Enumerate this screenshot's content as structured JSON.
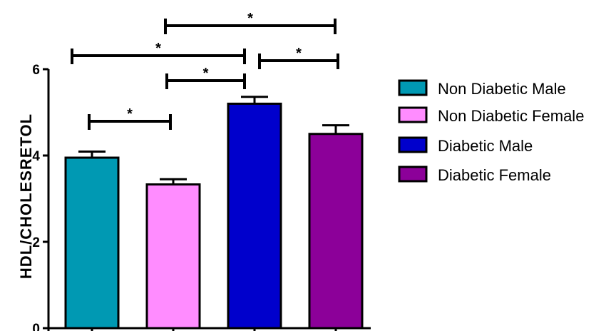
{
  "chart_data": {
    "type": "bar",
    "categories": [
      "Non Diabetic Male",
      "Non Diabetic Female",
      "Diabetic Male",
      "Diabetic Female"
    ],
    "values": [
      3.95,
      3.33,
      5.2,
      4.5
    ],
    "errors": [
      0.14,
      0.12,
      0.16,
      0.2
    ],
    "colors": [
      "#0099b3",
      "#ff8cff",
      "#0000cc",
      "#8c0099"
    ],
    "ylabel": "HDL/CHOLESRETOL",
    "ylim": [
      0,
      6
    ],
    "yticks": [
      "0",
      "2",
      "4",
      "6"
    ],
    "legend": {
      "position": "right",
      "entries": [
        "Non Diabetic Male",
        "Non Diabetic Female",
        "Diabetic Male",
        "Diabetic Female"
      ]
    },
    "significance": [
      {
        "from": 0,
        "to": 1,
        "label": "*"
      },
      {
        "from": 1,
        "to": 2,
        "label": "*"
      },
      {
        "from": 2,
        "to": 3,
        "label": "*"
      },
      {
        "from": 0,
        "to": 2,
        "label": "*"
      },
      {
        "from": 1,
        "to": 3,
        "label": "*"
      }
    ],
    "grid": false
  }
}
